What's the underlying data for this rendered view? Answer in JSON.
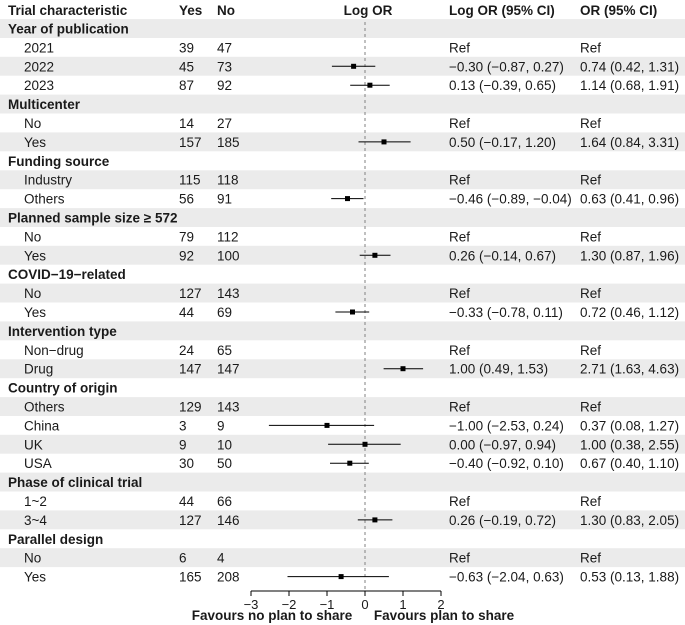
{
  "headers": {
    "characteristic": "Trial characteristic",
    "yes": "Yes",
    "no": "No",
    "logor": "Log OR",
    "logor_ci": "Log OR (95% CI)",
    "or_ci": "OR (95% CI)"
  },
  "colors": {
    "band": "#ebebeb",
    "mark": "#000000",
    "refline": "#808080"
  },
  "chart_data": {
    "type": "forest",
    "x_axis": {
      "range": [
        -3,
        2
      ],
      "ticks": [
        "−3",
        "−2",
        "−1",
        "0",
        "1",
        "2"
      ],
      "tick_values": [
        -3,
        -2,
        -1,
        0,
        1,
        2
      ]
    },
    "reference_line": 0,
    "favours_left": "Favours no plan to share",
    "favours_right": "Favours plan to share",
    "groups": [
      {
        "label": "Year of publication",
        "rows": [
          {
            "label": "2021",
            "yes": "39",
            "no": "47",
            "logor_ci": "Ref",
            "or_ci": "Ref"
          },
          {
            "label": "2022",
            "yes": "45",
            "no": "73",
            "est": -0.3,
            "lo": -0.87,
            "hi": 0.27,
            "logor_ci": "−0.30 (−0.87, 0.27)",
            "or_ci": "0.74 (0.42, 1.31)"
          },
          {
            "label": "2023",
            "yes": "87",
            "no": "92",
            "est": 0.13,
            "lo": -0.39,
            "hi": 0.65,
            "logor_ci": "0.13 (−0.39, 0.65)",
            "or_ci": "1.14 (0.68, 1.91)"
          }
        ]
      },
      {
        "label": "Multicenter",
        "rows": [
          {
            "label": "No",
            "yes": "14",
            "no": "27",
            "logor_ci": "Ref",
            "or_ci": "Ref"
          },
          {
            "label": "Yes",
            "yes": "157",
            "no": "185",
            "est": 0.5,
            "lo": -0.17,
            "hi": 1.2,
            "logor_ci": "0.50 (−0.17, 1.20)",
            "or_ci": "1.64 (0.84, 3.31)"
          }
        ]
      },
      {
        "label": "Funding source",
        "rows": [
          {
            "label": "Industry",
            "yes": "115",
            "no": "118",
            "logor_ci": "Ref",
            "or_ci": "Ref"
          },
          {
            "label": "Others",
            "yes": "56",
            "no": "91",
            "est": -0.46,
            "lo": -0.89,
            "hi": -0.04,
            "logor_ci": "−0.46 (−0.89, −0.04)",
            "or_ci": "0.63 (0.41, 0.96)"
          }
        ]
      },
      {
        "label": "Planned sample size ≥ 572",
        "rows": [
          {
            "label": "No",
            "yes": "79",
            "no": "112",
            "logor_ci": "Ref",
            "or_ci": "Ref"
          },
          {
            "label": "Yes",
            "yes": "92",
            "no": "100",
            "est": 0.26,
            "lo": -0.14,
            "hi": 0.67,
            "logor_ci": "0.26 (−0.14, 0.67)",
            "or_ci": "1.30 (0.87, 1.96)"
          }
        ]
      },
      {
        "label": "COVID−19−related",
        "rows": [
          {
            "label": "No",
            "yes": "127",
            "no": "143",
            "logor_ci": "Ref",
            "or_ci": "Ref"
          },
          {
            "label": "Yes",
            "yes": "44",
            "no": "69",
            "est": -0.33,
            "lo": -0.78,
            "hi": 0.11,
            "logor_ci": "−0.33 (−0.78, 0.11)",
            "or_ci": "0.72 (0.46, 1.12)"
          }
        ]
      },
      {
        "label": "Intervention type",
        "rows": [
          {
            "label": "Non−drug",
            "yes": "24",
            "no": "65",
            "logor_ci": "Ref",
            "or_ci": "Ref"
          },
          {
            "label": "Drug",
            "yes": "147",
            "no": "147",
            "est": 1.0,
            "lo": 0.49,
            "hi": 1.53,
            "logor_ci": "1.00 (0.49, 1.53)",
            "or_ci": "2.71 (1.63, 4.63)"
          }
        ]
      },
      {
        "label": "Country of origin",
        "rows": [
          {
            "label": "Others",
            "yes": "129",
            "no": "143",
            "logor_ci": "Ref",
            "or_ci": "Ref"
          },
          {
            "label": "China",
            "yes": "3",
            "no": "9",
            "est": -1.0,
            "lo": -2.53,
            "hi": 0.24,
            "logor_ci": "−1.00 (−2.53, 0.24)",
            "or_ci": "0.37 (0.08, 1.27)"
          },
          {
            "label": "UK",
            "yes": "9",
            "no": "10",
            "est": 0.0,
            "lo": -0.97,
            "hi": 0.94,
            "logor_ci": "0.00 (−0.97, 0.94)",
            "or_ci": "1.00 (0.38, 2.55)"
          },
          {
            "label": "USA",
            "yes": "30",
            "no": "50",
            "est": -0.4,
            "lo": -0.92,
            "hi": 0.1,
            "logor_ci": "−0.40 (−0.92, 0.10)",
            "or_ci": "0.67 (0.40, 1.10)"
          }
        ]
      },
      {
        "label": "Phase of clinical trial",
        "rows": [
          {
            "label": "1~2",
            "yes": "44",
            "no": "66",
            "logor_ci": "Ref",
            "or_ci": "Ref"
          },
          {
            "label": "3~4",
            "yes": "127",
            "no": "146",
            "est": 0.26,
            "lo": -0.19,
            "hi": 0.72,
            "logor_ci": "0.26 (−0.19, 0.72)",
            "or_ci": "1.30 (0.83, 2.05)"
          }
        ]
      },
      {
        "label": "Parallel design",
        "rows": [
          {
            "label": "No",
            "yes": "6",
            "no": "4",
            "logor_ci": "Ref",
            "or_ci": "Ref"
          },
          {
            "label": "Yes",
            "yes": "165",
            "no": "208",
            "est": -0.63,
            "lo": -2.04,
            "hi": 0.63,
            "logor_ci": "−0.63 (−2.04, 0.63)",
            "or_ci": "0.53 (0.13, 1.88)"
          }
        ]
      }
    ]
  }
}
